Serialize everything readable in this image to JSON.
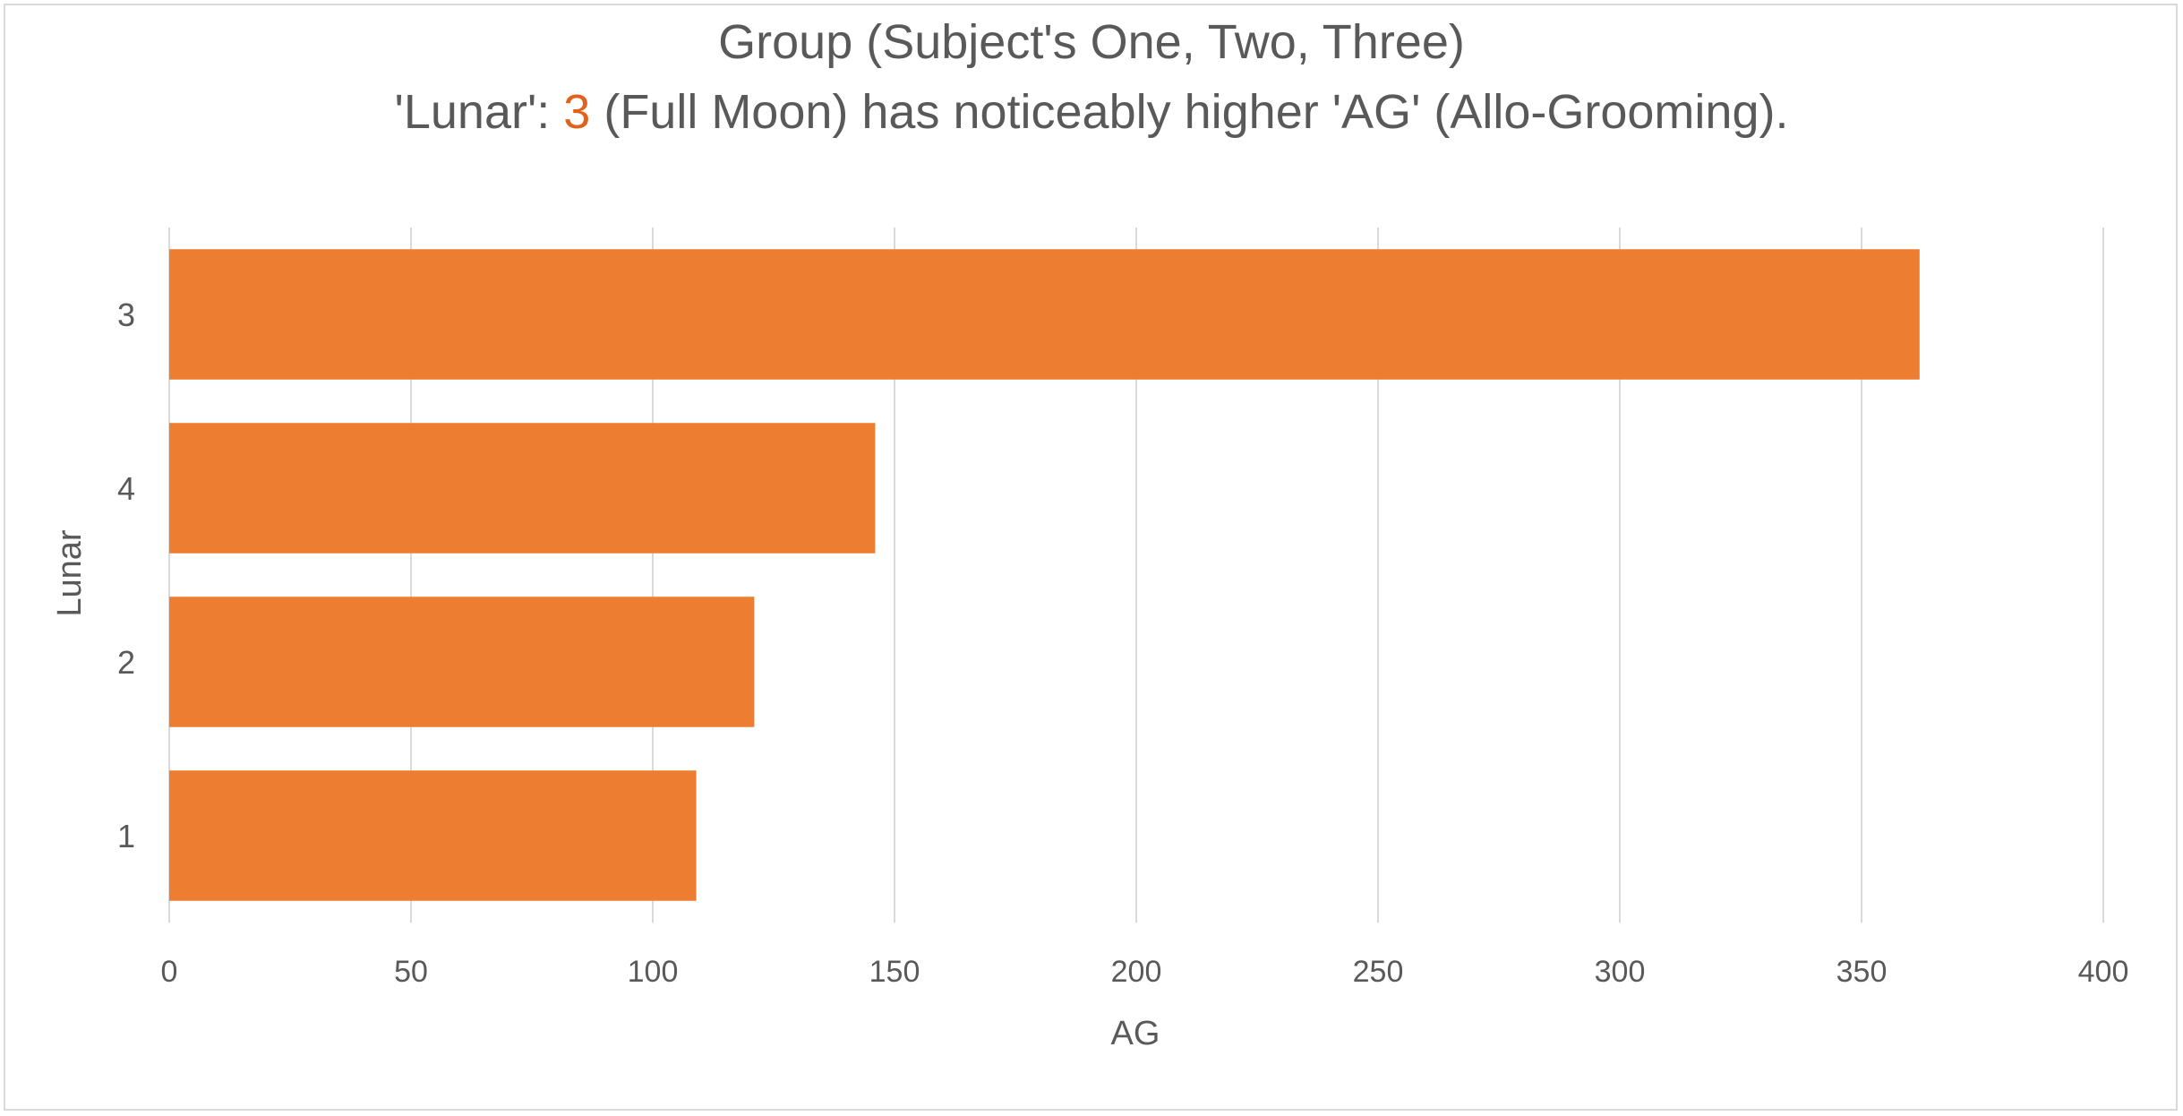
{
  "chart_data": {
    "type": "bar",
    "orientation": "horizontal",
    "title": "Group (Subject's One, Two, Three)",
    "subtitle": {
      "prefix": "'Lunar': ",
      "highlight": "3",
      "suffix": " (Full Moon) has noticeably higher 'AG' (Allo-Grooming)."
    },
    "categories": [
      "3",
      "4",
      "2",
      "1"
    ],
    "values": [
      362,
      146,
      121,
      109
    ],
    "xlabel": "AG",
    "ylabel": "Lunar",
    "xlim": [
      0,
      400
    ],
    "xticks": [
      "0",
      "50",
      "100",
      "150",
      "200",
      "250",
      "300",
      "350",
      "400"
    ],
    "grid": "vertical",
    "legend": "none",
    "bar_color": "#ed7d31",
    "highlight_color": "#e0621e",
    "grid_color": "#d9d9d9"
  }
}
